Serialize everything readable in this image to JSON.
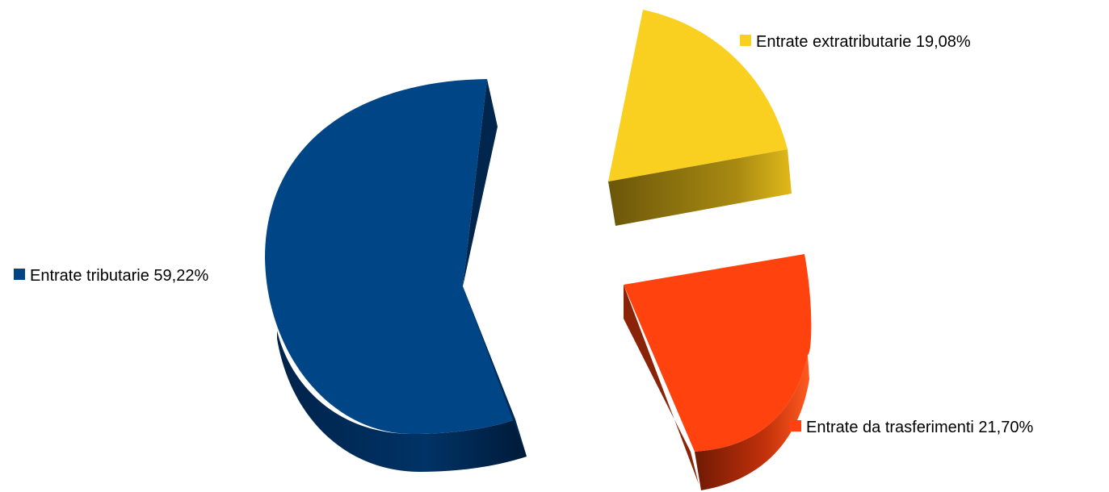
{
  "chart_data": {
    "type": "pie",
    "title": "",
    "slices": [
      {
        "label": "Entrate tributarie 59,22%",
        "category": "Entrate tributarie",
        "value": 59.22,
        "color": "#004586",
        "exploded": false
      },
      {
        "label": "Entrate extratributarie 19,08%",
        "category": "Entrate extratributarie",
        "value": 19.08,
        "color": "#f9d01f",
        "exploded": true
      },
      {
        "label": "Entrate da trasferimenti 21,70%",
        "category": "Entrate da trasferimenti",
        "value": 21.7,
        "color": "#ff420e",
        "exploded": true
      }
    ],
    "style": "3d-exploded",
    "legend": "inline-labels"
  }
}
